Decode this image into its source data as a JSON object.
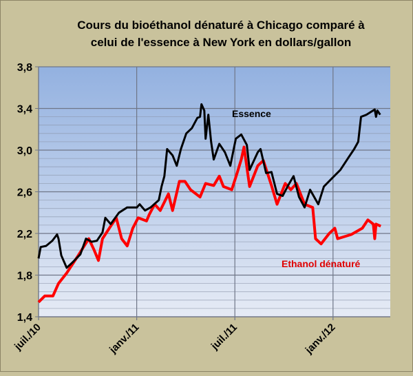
{
  "chart_data": {
    "type": "line",
    "title": [
      "Cours du bioéthanol dénaturé à Chicago comparé à",
      "celui de l'essence à New York en dollars/gallon"
    ],
    "xlabel": "",
    "ylabel": "",
    "x_unit": "months since juil. 2010",
    "xlim": [
      0,
      21.5
    ],
    "ylim": [
      1.4,
      3.8
    ],
    "yticks": [
      1.4,
      1.8,
      2.2,
      2.6,
      3.0,
      3.4,
      3.8
    ],
    "ytick_labels": [
      "1,4",
      "1,8",
      "2,2",
      "2,6",
      "3,0",
      "3,4",
      "3,8"
    ],
    "xticks": [
      0,
      6,
      12,
      18
    ],
    "xtick_labels": [
      "juil./10",
      "janv./11",
      "juil./11",
      "janv./12"
    ],
    "grid": true,
    "legend": "inline labels",
    "series": [
      {
        "name": "Essence",
        "color": "#000000",
        "x": [
          0.0,
          0.13,
          0.46,
          0.84,
          1.13,
          1.22,
          1.39,
          1.72,
          2.06,
          2.56,
          2.9,
          3.24,
          3.57,
          3.91,
          4.08,
          4.41,
          4.92,
          5.42,
          6.01,
          6.18,
          6.51,
          6.85,
          7.35,
          7.52,
          7.69,
          7.86,
          8.19,
          8.45,
          8.7,
          9.03,
          9.37,
          9.71,
          9.87,
          9.96,
          10.13,
          10.21,
          10.38,
          10.55,
          10.71,
          11.05,
          11.39,
          11.72,
          12.06,
          12.39,
          12.73,
          12.9,
          13.4,
          13.57,
          13.91,
          14.24,
          14.58,
          14.92,
          15.25,
          15.59,
          15.92,
          16.26,
          16.6,
          17.1,
          17.44,
          17.94,
          18.45,
          18.95,
          19.29,
          19.54,
          19.71,
          20.04,
          20.55,
          20.63,
          20.71,
          20.88
        ],
        "values": [
          1.96,
          2.07,
          2.08,
          2.13,
          2.19,
          2.15,
          1.99,
          1.87,
          1.92,
          2.0,
          2.15,
          2.12,
          2.13,
          2.21,
          2.35,
          2.29,
          2.4,
          2.45,
          2.45,
          2.48,
          2.42,
          2.45,
          2.52,
          2.65,
          2.75,
          3.01,
          2.95,
          2.85,
          3.01,
          3.16,
          3.21,
          3.31,
          3.32,
          3.44,
          3.38,
          3.11,
          3.34,
          3.08,
          2.91,
          3.06,
          2.98,
          2.85,
          3.11,
          3.15,
          3.05,
          2.81,
          2.98,
          3.01,
          2.78,
          2.79,
          2.58,
          2.56,
          2.66,
          2.75,
          2.55,
          2.45,
          2.62,
          2.48,
          2.65,
          2.73,
          2.81,
          2.93,
          3.01,
          3.08,
          3.32,
          3.34,
          3.39,
          3.32,
          3.38,
          3.34
        ]
      },
      {
        "name": "Ethanol dénaturé",
        "color": "#ff0000",
        "x": [
          0.0,
          0.38,
          0.88,
          1.22,
          1.72,
          2.39,
          3.07,
          3.4,
          3.66,
          3.91,
          4.41,
          4.75,
          5.08,
          5.42,
          5.76,
          6.09,
          6.6,
          6.76,
          7.1,
          7.44,
          7.94,
          8.19,
          8.61,
          8.95,
          9.29,
          9.87,
          10.21,
          10.71,
          11.05,
          11.3,
          11.81,
          12.14,
          12.39,
          12.56,
          12.9,
          13.4,
          13.74,
          14.24,
          14.58,
          15.08,
          15.42,
          15.76,
          16.26,
          16.76,
          16.85,
          16.93,
          17.27,
          17.77,
          18.11,
          18.28,
          19.12,
          19.79,
          20.13,
          20.46,
          20.55,
          20.63,
          20.92
        ],
        "values": [
          1.54,
          1.6,
          1.6,
          1.72,
          1.82,
          1.98,
          2.15,
          2.04,
          1.94,
          2.15,
          2.27,
          2.35,
          2.15,
          2.08,
          2.25,
          2.35,
          2.32,
          2.38,
          2.48,
          2.42,
          2.58,
          2.42,
          2.7,
          2.7,
          2.62,
          2.55,
          2.68,
          2.66,
          2.75,
          2.65,
          2.62,
          2.78,
          2.91,
          3.03,
          2.65,
          2.85,
          2.9,
          2.66,
          2.48,
          2.68,
          2.62,
          2.68,
          2.48,
          2.45,
          2.29,
          2.15,
          2.1,
          2.2,
          2.25,
          2.15,
          2.19,
          2.25,
          2.33,
          2.29,
          2.15,
          2.29,
          2.27
        ]
      }
    ],
    "annotations": [
      "Essence",
      "Ethanol dénaturé"
    ]
  }
}
